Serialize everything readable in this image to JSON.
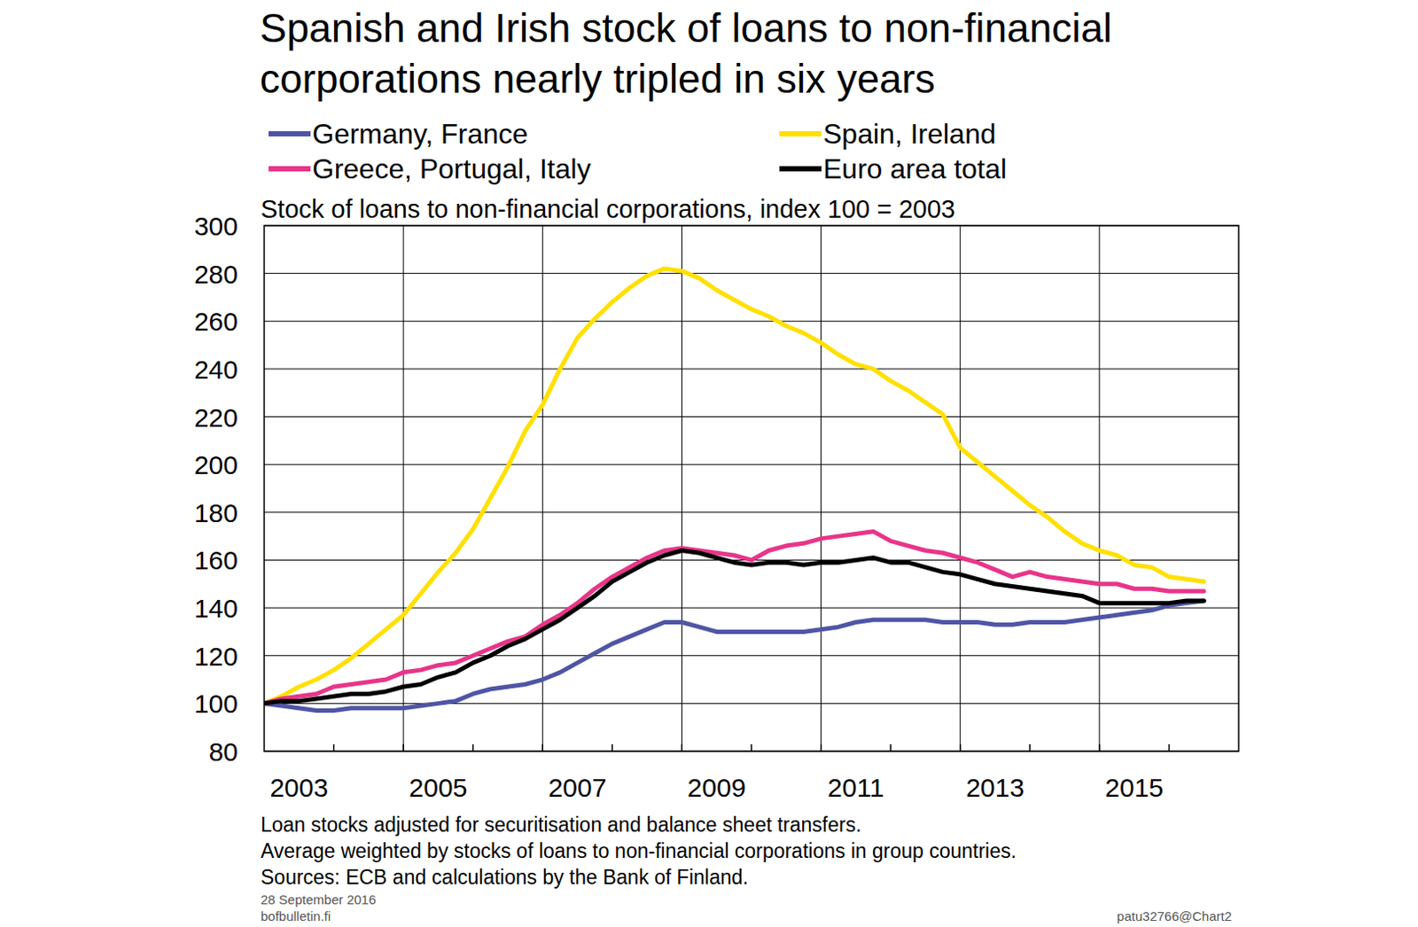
{
  "chart_data": {
    "type": "line",
    "title": [
      "Spanish and Irish stock of loans to non-financial",
      "corporations nearly tripled in six years"
    ],
    "subtitle": "Stock of loans to non-financial corporations, index 100 = 2003",
    "notes": [
      "Loan stocks adjusted for securitisation and balance sheet transfers.",
      "Average weighted by stocks of loans to non-financial corporations in group countries.",
      "Sources: ECB and calculations by the Bank of Finland."
    ],
    "footer": {
      "date": "28 September 2016",
      "site": "bofbulletin.fi",
      "id": "patu32766@Chart2"
    },
    "legend": "top",
    "grid": true,
    "xlim": [
      2003,
      2017
    ],
    "xticks": [
      {
        "value": 2003.5,
        "label": "2003"
      },
      {
        "value": 2005.5,
        "label": "2005"
      },
      {
        "value": 2007.5,
        "label": "2007"
      },
      {
        "value": 2009.5,
        "label": "2009"
      },
      {
        "value": 2011.5,
        "label": "2011"
      },
      {
        "value": 2013.5,
        "label": "2013"
      },
      {
        "value": 2015.5,
        "label": "2015"
      }
    ],
    "ylim": [
      80,
      300
    ],
    "yticks": [
      80,
      100,
      120,
      140,
      160,
      180,
      200,
      220,
      240,
      260,
      280,
      300
    ],
    "x": [
      2003,
      2003.25,
      2003.5,
      2003.75,
      2004,
      2004.25,
      2004.5,
      2004.75,
      2005,
      2005.25,
      2005.5,
      2005.75,
      2006,
      2006.25,
      2006.5,
      2006.75,
      2007,
      2007.25,
      2007.5,
      2007.75,
      2008,
      2008.25,
      2008.5,
      2008.75,
      2009,
      2009.25,
      2009.5,
      2009.75,
      2010,
      2010.25,
      2010.5,
      2010.75,
      2011,
      2011.25,
      2011.5,
      2011.75,
      2012,
      2012.25,
      2012.5,
      2012.75,
      2013,
      2013.25,
      2013.5,
      2013.75,
      2014,
      2014.25,
      2014.5,
      2014.75,
      2015,
      2015.25,
      2015.5,
      2015.75,
      2016,
      2016.25,
      2016.5
    ],
    "series": [
      {
        "name": "Germany, France",
        "color": "#4f55a5",
        "values": [
          100,
          99,
          98,
          97,
          97,
          98,
          98,
          98,
          98,
          99,
          100,
          101,
          104,
          106,
          107,
          108,
          110,
          113,
          117,
          121,
          125,
          128,
          131,
          134,
          134,
          132,
          130,
          130,
          130,
          130,
          130,
          130,
          131,
          132,
          134,
          135,
          135,
          135,
          135,
          134,
          134,
          134,
          133,
          133,
          134,
          134,
          134,
          135,
          136,
          137,
          138,
          139,
          141,
          142,
          143
        ]
      },
      {
        "name": "Spain, Ireland",
        "color": "#ffe000",
        "values": [
          100,
          103,
          107,
          110,
          114,
          119,
          125,
          131,
          137,
          146,
          155,
          163,
          173,
          186,
          199,
          214,
          225,
          240,
          253,
          261,
          268,
          274,
          279,
          282,
          281,
          278,
          273,
          269,
          265,
          262,
          258,
          255,
          251,
          246,
          242,
          240,
          235,
          231,
          226,
          221,
          207,
          201,
          195,
          189,
          183,
          178,
          172,
          167,
          164,
          162,
          158,
          157,
          153,
          152,
          151
        ]
      },
      {
        "name": "Greece, Portugal, Italy",
        "color": "#e8358a",
        "values": [
          100,
          102,
          103,
          104,
          107,
          108,
          109,
          110,
          113,
          114,
          116,
          117,
          120,
          123,
          126,
          128,
          133,
          137,
          142,
          148,
          153,
          157,
          161,
          164,
          165,
          164,
          163,
          162,
          160,
          164,
          166,
          167,
          169,
          170,
          171,
          172,
          168,
          166,
          164,
          163,
          161,
          159,
          156,
          153,
          155,
          153,
          152,
          151,
          150,
          150,
          148,
          148,
          147,
          147,
          147
        ]
      },
      {
        "name": "Euro area total",
        "color": "#000000",
        "values": [
          100,
          101,
          101,
          102,
          103,
          104,
          104,
          105,
          107,
          108,
          111,
          113,
          117,
          120,
          124,
          127,
          131,
          135,
          140,
          145,
          151,
          155,
          159,
          162,
          164,
          163,
          161,
          159,
          158,
          159,
          159,
          158,
          159,
          159,
          160,
          161,
          159,
          159,
          157,
          155,
          154,
          152,
          150,
          149,
          148,
          147,
          146,
          145,
          142,
          142,
          142,
          142,
          142,
          143,
          143
        ]
      }
    ]
  }
}
